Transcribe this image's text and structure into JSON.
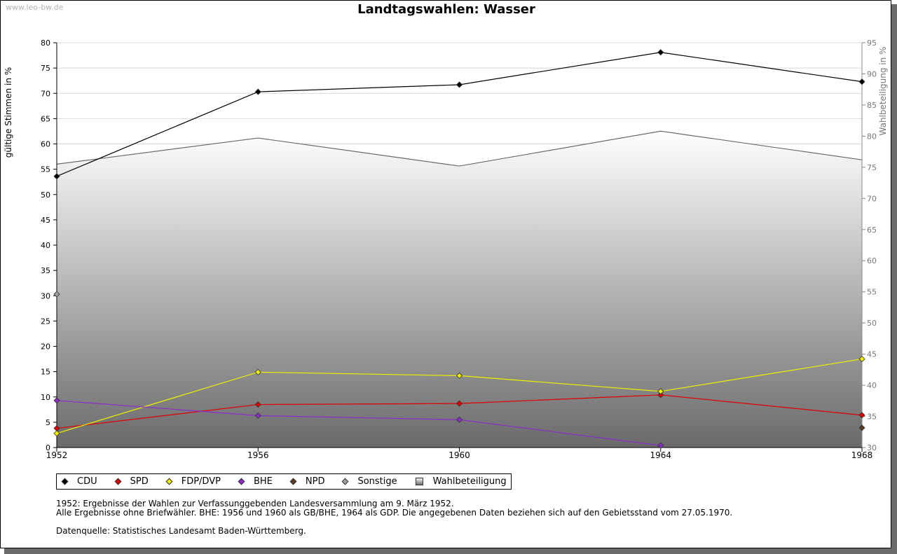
{
  "watermark": "www.leo-bw.de",
  "chart_data": {
    "type": "line",
    "title": "Landtagswahlen: Wasser",
    "ylabel": "gültige Stimmen in %",
    "y2label": "Wahlbeteiligung in %",
    "x": [
      "1952",
      "1956",
      "1960",
      "1964",
      "1968"
    ],
    "ylim": [
      0,
      80
    ],
    "y_ticks": [
      0,
      5,
      10,
      15,
      20,
      25,
      30,
      35,
      40,
      45,
      50,
      55,
      60,
      65,
      70,
      75,
      80
    ],
    "y2lim": [
      30,
      95
    ],
    "y2_ticks": [
      30,
      35,
      40,
      45,
      50,
      55,
      60,
      65,
      70,
      75,
      80,
      85,
      90,
      95
    ],
    "grid": true,
    "legend_position": "bottom",
    "series": [
      {
        "name": "CDU",
        "color": "#000000",
        "values": [
          53.6,
          70.3,
          71.7,
          78.1,
          72.3
        ]
      },
      {
        "name": "SPD",
        "color": "#e00000",
        "values": [
          3.8,
          8.5,
          8.7,
          10.4,
          6.4
        ]
      },
      {
        "name": "FDP/DVP",
        "color": "#f0f000",
        "values": [
          2.8,
          14.9,
          14.2,
          11.1,
          17.5
        ]
      },
      {
        "name": "BHE",
        "color": "#8c2cc8",
        "values": [
          9.3,
          6.3,
          5.5,
          0.4,
          null
        ]
      },
      {
        "name": "NPD",
        "color": "#5a3c28",
        "values": [
          null,
          null,
          null,
          null,
          3.9
        ]
      },
      {
        "name": "Sonstige",
        "color": "#a0a0a0",
        "values": [
          30.3,
          null,
          null,
          null,
          null
        ]
      }
    ],
    "turnout": {
      "name": "Wahlbeteiligung",
      "axis": "right",
      "values": [
        75.5,
        79.7,
        75.2,
        80.8,
        76.2
      ]
    }
  },
  "notes": {
    "line1": "1952: Ergebnisse der Wahlen zur Verfassunggebenden Landesversammlung am 9. März 1952.",
    "line2": "Alle Ergebnisse ohne Briefwähler. BHE: 1956 und 1960 als GB/BHE, 1964 als GDP. Die angegebenen Daten beziehen sich auf den Gebietsstand vom 27.05.1970.",
    "source": "Datenquelle: Statistisches Landesamt Baden-Württemberg."
  }
}
